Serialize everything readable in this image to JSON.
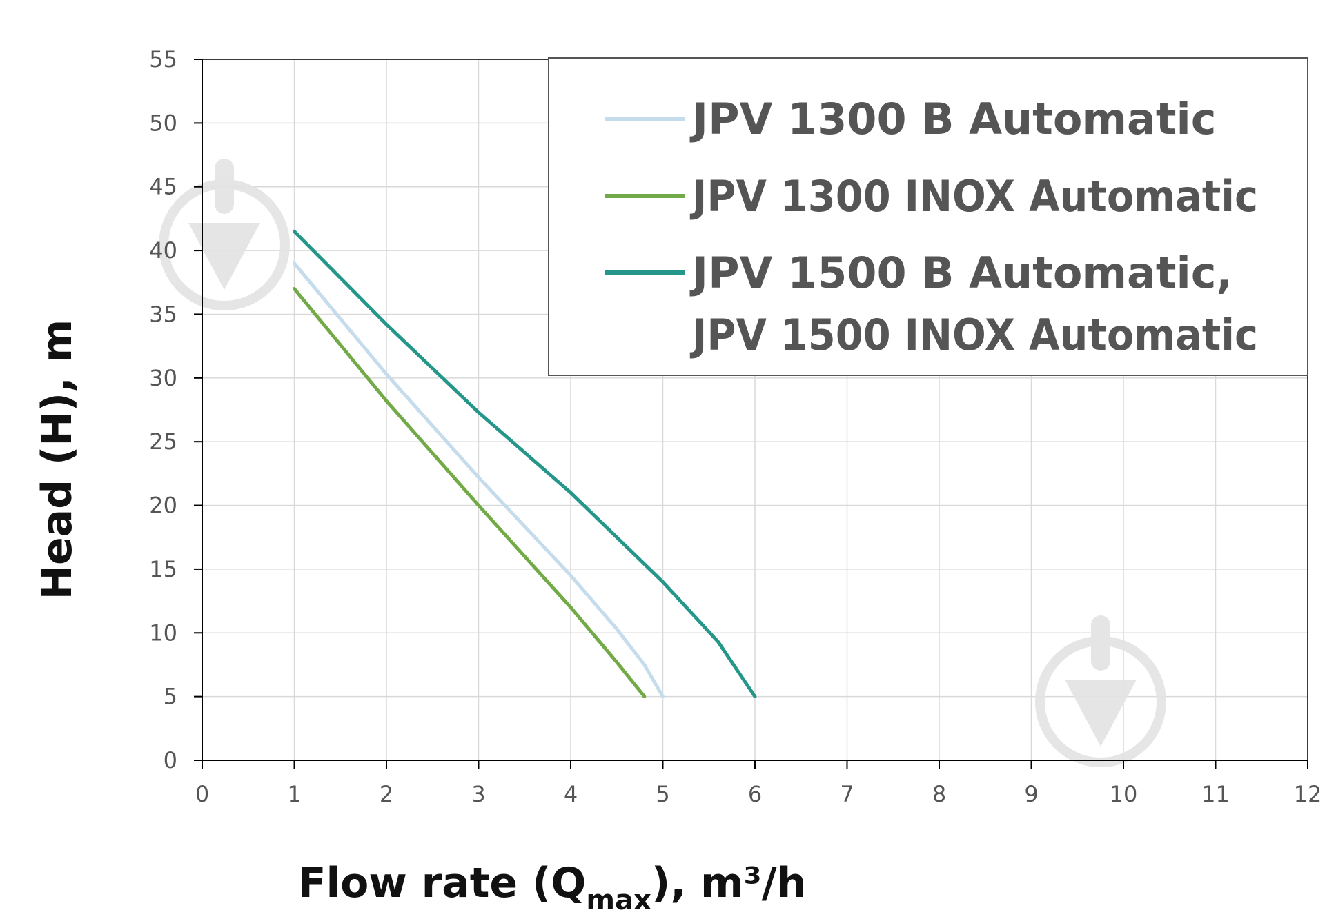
{
  "chart_data": {
    "type": "line",
    "xlabel": {
      "main": "Flow rate (Q",
      "sub": "max",
      "tail": "), m³/h"
    },
    "ylabel": "Head (H), m",
    "xlim": [
      0,
      12
    ],
    "ylim": [
      0,
      55
    ],
    "xticks": [
      "0",
      "1",
      "2",
      "3",
      "4",
      "5",
      "6",
      "7",
      "8",
      "9",
      "10",
      "11",
      "12"
    ],
    "yticks": [
      "0",
      "5",
      "10",
      "15",
      "20",
      "25",
      "30",
      "35",
      "40",
      "45",
      "50",
      "55"
    ],
    "grid": true,
    "legend_position": "top-right",
    "colors": {
      "grid": "#d9d9d9",
      "axis": "#000000",
      "text": "#555555",
      "watermark": "#e3e3e3"
    },
    "series": [
      {
        "name": "JPV 1300 B Automatic",
        "color": "#c5dcec",
        "x": [
          1,
          2,
          3,
          4,
          4.5,
          4.8,
          5
        ],
        "y": [
          39,
          30.3,
          22.2,
          14.5,
          10.3,
          7.5,
          5
        ]
      },
      {
        "name": "JPV 1300 INOX Automatic",
        "color": "#72aa48",
        "x": [
          1,
          2,
          3,
          4,
          4.5,
          4.8
        ],
        "y": [
          37,
          28.2,
          20,
          12,
          7.7,
          5
        ]
      },
      {
        "name": "JPV 1500 B Automatic,\nJPV 1500 INOX Automatic",
        "legend_lines": [
          "JPV 1500 B Automatic,",
          "JPV 1500 INOX Automatic"
        ],
        "color": "#24968a",
        "x": [
          1,
          2,
          3,
          4,
          5,
          5.6,
          6
        ],
        "y": [
          41.5,
          34.2,
          27.3,
          21,
          14,
          9.3,
          5
        ]
      }
    ]
  }
}
